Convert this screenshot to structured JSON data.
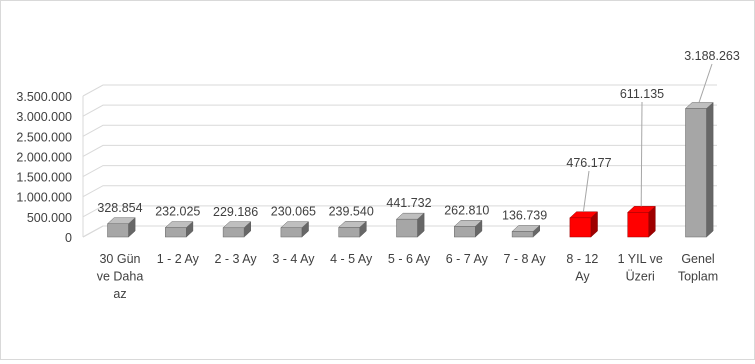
{
  "chart_data": {
    "type": "bar",
    "title": "",
    "xlabel": "",
    "ylabel": "",
    "ylim": [
      0,
      3500000
    ],
    "yticks": [
      0,
      500000,
      1000000,
      1500000,
      2000000,
      2500000,
      3000000,
      3500000
    ],
    "ytick_labels": [
      "0",
      "500.000",
      "1.000.000",
      "1.500.000",
      "2.000.000",
      "2.500.000",
      "3.000.000",
      "3.500.000"
    ],
    "grid": true,
    "style": "3d-column",
    "categories": [
      [
        "30 Gün",
        "ve Daha",
        "az"
      ],
      [
        "1 - 2 Ay"
      ],
      [
        "2 - 3 Ay"
      ],
      [
        "3 - 4 Ay"
      ],
      [
        "4 - 5 Ay"
      ],
      [
        "5 - 6 Ay"
      ],
      [
        "6 - 7 Ay"
      ],
      [
        "7 - 8 Ay"
      ],
      [
        "8 - 12",
        "Ay"
      ],
      [
        "1 YIL ve",
        "Üzeri"
      ],
      [
        "Genel",
        "Toplam"
      ]
    ],
    "values": [
      328854,
      232025,
      229186,
      230065,
      239540,
      441732,
      262810,
      136739,
      476177,
      611135,
      3188263
    ],
    "value_labels": [
      "328.854",
      "232.025",
      "229.186",
      "230.065",
      "239.540",
      "441.732",
      "262.810",
      "136.739",
      "476.177",
      "611.135",
      "3.188.263"
    ],
    "bar_colors": [
      "#a6a6a6",
      "#a6a6a6",
      "#a6a6a6",
      "#a6a6a6",
      "#a6a6a6",
      "#a6a6a6",
      "#a6a6a6",
      "#a6a6a6",
      "#ff0000",
      "#ff0000",
      "#a6a6a6"
    ]
  },
  "colors": {
    "gray_bar": "#a6a6a6",
    "highlight_bar": "#ff0000",
    "gridline": "#d9d9d9",
    "text": "#404040"
  }
}
